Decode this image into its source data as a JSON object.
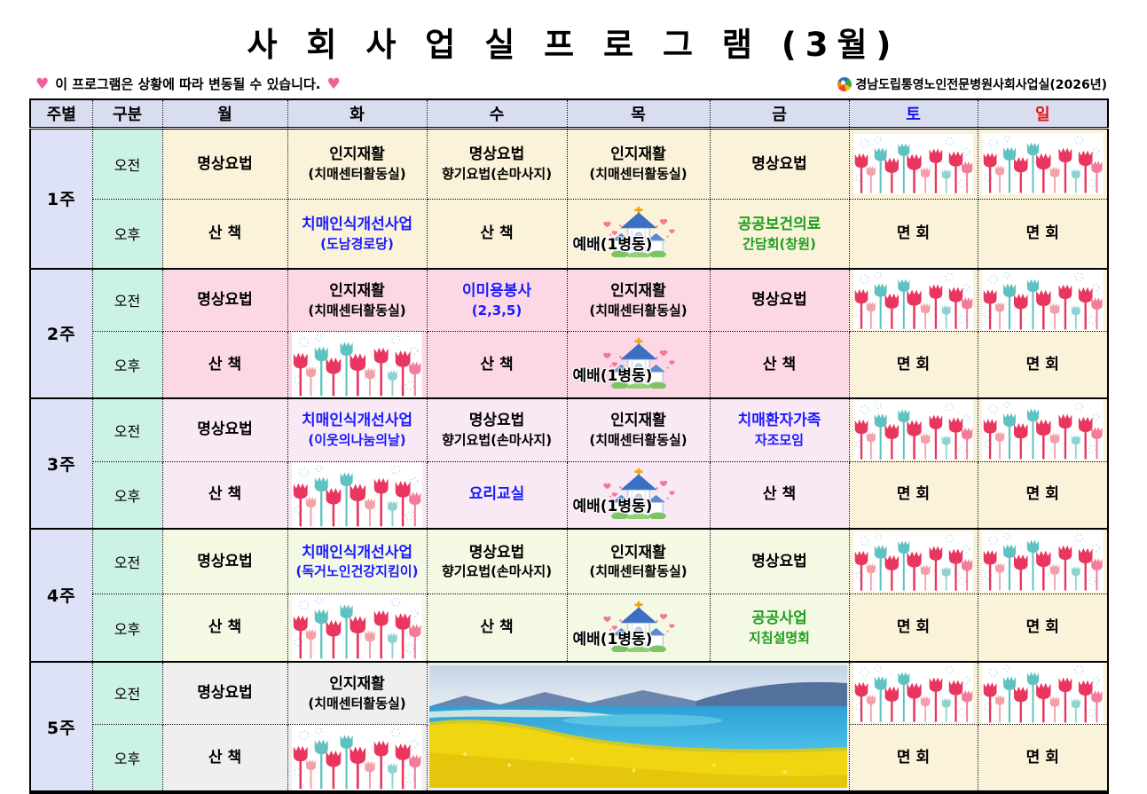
{
  "title": "사 회 사 업 실 프 로 그 램 (3월)",
  "notice": {
    "heart_left": "♥",
    "text": "이  프로그램은  상황에  따라  변동될  수  있습니다.",
    "heart_right": "♥"
  },
  "org_label": "경남도립통영노인전문병원사회사업실(2026년)",
  "colors": {
    "saturday_header": "#1414e8",
    "sunday_header": "#e81414",
    "program_blue": "#1a1aff",
    "program_green": "#1e9e1e",
    "week1_bg": "#faf3da",
    "week2_bg": "#fcd8e6",
    "week3_bg": "#f9e9f5",
    "week4_bg": "#f4f9e4",
    "week5_bg": "#efefef"
  },
  "icons": {
    "flowers": "tulip-flowers-image",
    "church": "church-worship-image",
    "photo": "canola-field-seaside-photo"
  },
  "table": {
    "headers": [
      "주별",
      "구분",
      "월",
      "화",
      "수",
      "목",
      "금",
      "토",
      "일"
    ],
    "session_labels": {
      "am": "오전",
      "pm": "오후"
    },
    "weeks": [
      {
        "label": "1주",
        "am": {
          "mon": {
            "t1": "명상요법",
            "t2": ""
          },
          "tue": {
            "t1": "인지재활",
            "t2": "(치매센터활동실)"
          },
          "wed": {
            "t1": "명상요법",
            "t2": "향기요법(손마사지)"
          },
          "thu": {
            "t1": "인지재활",
            "t2": "(치매센터활동실)"
          },
          "fri": {
            "t1": "명상요법",
            "t2": ""
          }
        },
        "pm": {
          "mon": {
            "t1": "산 책",
            "t2": ""
          },
          "tue": {
            "t1": "치매인식개선사업",
            "t2": "(도남경로당)"
          },
          "wed": {
            "t1": "산 책",
            "t2": ""
          },
          "thu": {
            "caption": "예배(1병동)"
          },
          "fri": {
            "t1": "공공보건의료",
            "t2": "간담회(창원)"
          },
          "sat": {
            "t1": "면 회"
          },
          "sun": {
            "t1": "면 회"
          }
        }
      },
      {
        "label": "2주",
        "am": {
          "mon": {
            "t1": "명상요법",
            "t2": ""
          },
          "tue": {
            "t1": "인지재활",
            "t2": "(치매센터활동실)"
          },
          "wed": {
            "t1": "이미용봉사",
            "t2": "(2,3,5)"
          },
          "thu": {
            "t1": "인지재활",
            "t2": "(치매센터활동실)"
          },
          "fri": {
            "t1": "명상요법",
            "t2": ""
          }
        },
        "pm": {
          "mon": {
            "t1": "산 책",
            "t2": ""
          },
          "wed": {
            "t1": "산 책",
            "t2": ""
          },
          "thu": {
            "caption": "예배(1병동)"
          },
          "fri": {
            "t1": "산 책",
            "t2": ""
          },
          "sat": {
            "t1": "면 회"
          },
          "sun": {
            "t1": "면 회"
          }
        }
      },
      {
        "label": "3주",
        "am": {
          "mon": {
            "t1": "명상요법",
            "t2": ""
          },
          "tue": {
            "t1": "치매인식개선사업",
            "t2": "(이웃의나눔의날)"
          },
          "wed": {
            "t1": "명상요법",
            "t2": "향기요법(손마사지)"
          },
          "thu": {
            "t1": "인지재활",
            "t2": "(치매센터활동실)"
          },
          "fri": {
            "t1": "치매환자가족",
            "t2": "자조모임"
          }
        },
        "pm": {
          "mon": {
            "t1": "산 책",
            "t2": ""
          },
          "wed": {
            "t1": "요리교실",
            "t2": ""
          },
          "thu": {
            "caption": "예배(1병동)"
          },
          "fri": {
            "t1": "산 책",
            "t2": ""
          },
          "sat": {
            "t1": "면 회"
          },
          "sun": {
            "t1": "면 회"
          }
        }
      },
      {
        "label": "4주",
        "am": {
          "mon": {
            "t1": "명상요법",
            "t2": ""
          },
          "tue": {
            "t1": "치매인식개선사업",
            "t2": "(독거노인건강지킴이)"
          },
          "wed": {
            "t1": "명상요법",
            "t2": "향기요법(손마사지)"
          },
          "thu": {
            "t1": "인지재활",
            "t2": "(치매센터활동실)"
          },
          "fri": {
            "t1": "명상요법",
            "t2": ""
          }
        },
        "pm": {
          "mon": {
            "t1": "산 책",
            "t2": ""
          },
          "wed": {
            "t1": "산 책",
            "t2": ""
          },
          "thu": {
            "caption": "예배(1병동)"
          },
          "fri": {
            "t1": "공공사업",
            "t2": "지침설명회"
          },
          "sat": {
            "t1": "면 회"
          },
          "sun": {
            "t1": "면 회"
          }
        }
      },
      {
        "label": "5주",
        "am": {
          "mon": {
            "t1": "명상요법",
            "t2": ""
          },
          "tue": {
            "t1": "인지재활",
            "t2": "(치매센터활동실)"
          }
        },
        "pm": {
          "mon": {
            "t1": "산 책",
            "t2": ""
          },
          "sat": {
            "t1": "면 회"
          },
          "sun": {
            "t1": "면 회"
          }
        }
      }
    ]
  }
}
